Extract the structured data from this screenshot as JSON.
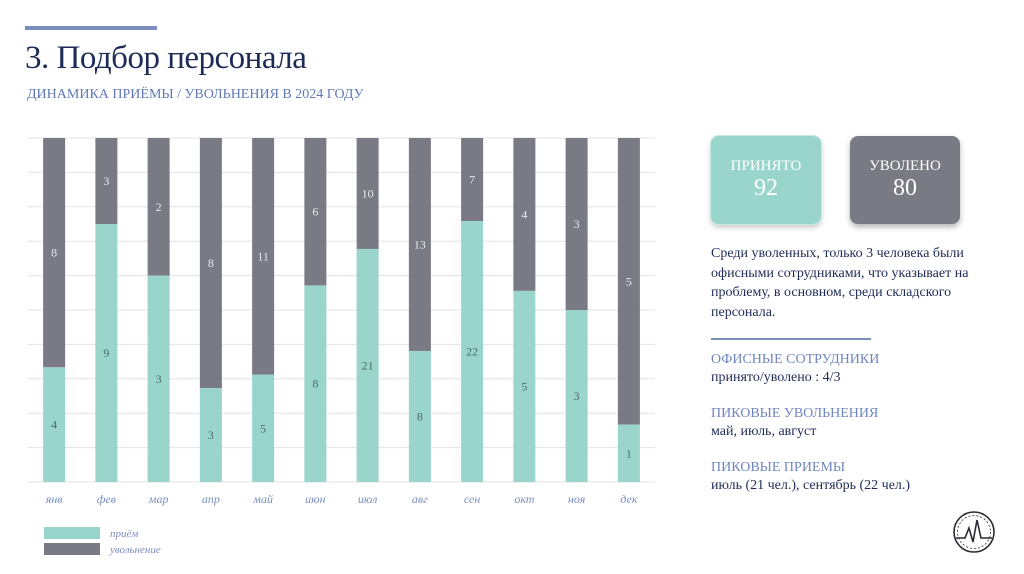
{
  "header": {
    "title": "3. Подбор персонала",
    "subtitle": "ДИНАМИКА ПРИЁМЫ / УВОЛЬНЕНИЯ В 2024 ГОДУ"
  },
  "chart_data": {
    "type": "bar",
    "stacked": true,
    "normalized": true,
    "categories": [
      "янв",
      "фев",
      "мар",
      "апр",
      "май",
      "июн",
      "июл",
      "авг",
      "сен",
      "окт",
      "ноя",
      "дек"
    ],
    "series": [
      {
        "name": "приём",
        "color": "#9ad5cc",
        "values": [
          4,
          9,
          3,
          3,
          5,
          8,
          21,
          8,
          22,
          5,
          3,
          1
        ]
      },
      {
        "name": "увольнение",
        "color": "#7a7a84",
        "values": [
          8,
          3,
          2,
          8,
          11,
          6,
          10,
          13,
          7,
          4,
          3,
          5
        ]
      }
    ],
    "legend_position": "bottom-left",
    "grid": true
  },
  "tiles": {
    "hired_label": "ПРИНЯТО",
    "hired_value": "92",
    "fired_label": "УВОЛЕНО",
    "fired_value": "80"
  },
  "note": "Среди уволенных, только 3 человека были офисными сотрудниками, что указывает на проблему, в основном, среди складского персонала.",
  "stats": [
    {
      "heading": "ОФИСНЫЕ СОТРУДНИКИ",
      "value": "принято/уволено : 4/3"
    },
    {
      "heading": "ПИКОВЫЕ УВОЛЬНЕНИЯ",
      "value": "май, июль, август"
    },
    {
      "heading": "ПИКОВЫЕ ПРИЕМЫ",
      "value": "июль (21 чел.), сентябрь (22 чел.)"
    }
  ],
  "colors": {
    "accent": "#7b8fbf",
    "title": "#1e2b56",
    "hire": "#9ad5cc",
    "fire": "#7a7a84"
  },
  "icons": {
    "logo": "pulse-logo-icon"
  }
}
